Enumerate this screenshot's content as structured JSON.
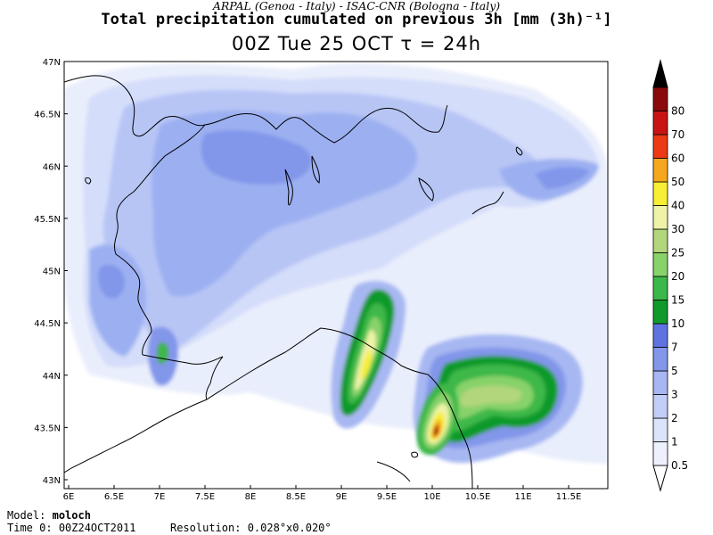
{
  "header": {
    "credits": "ARPAL (Genoa - Italy)  -  ISAC-CNR (Bologna - Italy)",
    "title": "Total precipitation cumulated on previous 3h [mm (3h)⁻¹]",
    "subtitle": "00Z Tue 25 OCT  τ = 24h"
  },
  "map": {
    "lat_labels": [
      "47N",
      "46.5N",
      "46N",
      "45.5N",
      "45N",
      "44.5N",
      "44N",
      "43.5N",
      "43N"
    ],
    "lon_labels": [
      "6E",
      "6.5E",
      "7E",
      "7.5E",
      "8E",
      "8.5E",
      "9E",
      "9.5E",
      "10E",
      "10.5E",
      "11E",
      "11.5E"
    ]
  },
  "colorbar": {
    "labels": [
      "0.5",
      "1",
      "2",
      "3",
      "5",
      "7",
      "10",
      "15",
      "20",
      "25",
      "30",
      "40",
      "50",
      "60",
      "70",
      "80"
    ],
    "colors": [
      "#eef1fd",
      "#dce4fb",
      "#c2cef7",
      "#a7b7f2",
      "#8296ea",
      "#5f73e0",
      "#119a2c",
      "#3cb84a",
      "#88d26a",
      "#b2d67c",
      "#eef3a8",
      "#f7ee36",
      "#f5a81e",
      "#ec3a15",
      "#c91414",
      "#8a0a0a",
      "#000000"
    ]
  },
  "footer": {
    "model_label": "Model:",
    "model_name": "moloch",
    "time_label": "Time 0:",
    "time_value": "00Z24OCT2011",
    "res_label": "Resolution:",
    "res_value": "0.028°x0.020°"
  }
}
